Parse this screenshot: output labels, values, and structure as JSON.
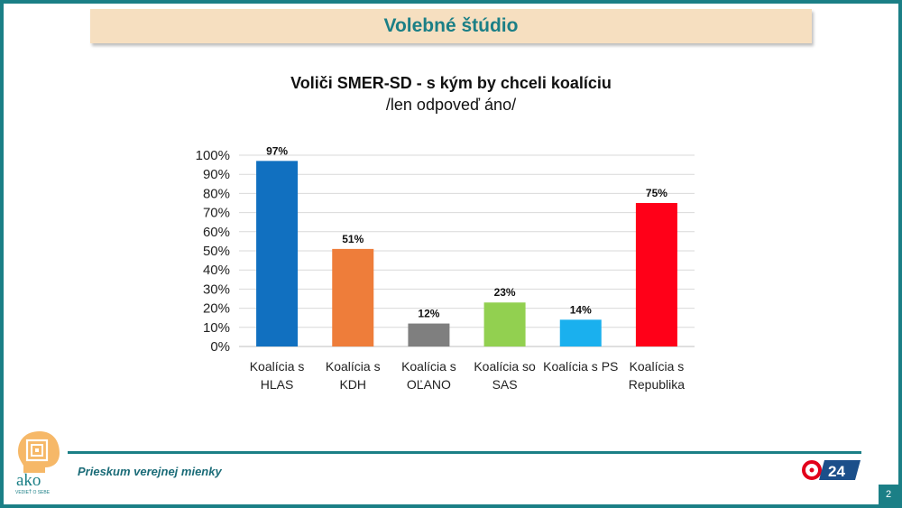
{
  "header": {
    "title": "Volebné štúdio"
  },
  "chart_data": {
    "type": "bar",
    "title": "Voliči SMER-SD - s kým by chceli koalíciu",
    "subtitle": "/len odpoveď áno/",
    "categories": [
      [
        "Koalícia s",
        "HLAS"
      ],
      [
        "Koalícia s",
        "KDH"
      ],
      [
        "Koalícia s",
        "OĽANO"
      ],
      [
        "Koalícia so",
        "SAS"
      ],
      [
        "Koalícia s PS"
      ],
      [
        "Koalícia s",
        "Republika"
      ]
    ],
    "values": [
      97,
      51,
      12,
      23,
      14,
      75
    ],
    "value_labels": [
      "97%",
      "51%",
      "12%",
      "23%",
      "14%",
      "75%"
    ],
    "colors": [
      "#1170c0",
      "#ee7d3a",
      "#7f7f7f",
      "#92d050",
      "#1ab0ee",
      "#ff0018"
    ],
    "ylim": [
      0,
      100
    ],
    "yticks": [
      "0%",
      "10%",
      "20%",
      "30%",
      "40%",
      "50%",
      "60%",
      "70%",
      "80%",
      "90%",
      "100%"
    ],
    "grid": true,
    "xlabel": "",
    "ylabel": ""
  },
  "footer": {
    "tagline": "Prieskum verejnej mienky",
    "logo_text": "ako",
    "logo_subtext": "VEDIEŤ O SEBE",
    "tv_logo_text": "24",
    "page_number": "2"
  },
  "colors": {
    "accent": "#1b7f86",
    "banner_bg": "#f6dfc0"
  }
}
